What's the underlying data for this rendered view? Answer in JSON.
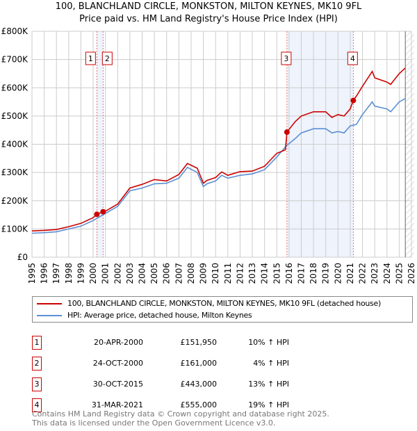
{
  "chart_data": {
    "type": "line",
    "title": "100, BLANCHLAND CIRCLE, MONKSTON, MILTON KEYNES, MK10 9FL",
    "subtitle": "Price paid vs. HM Land Registry's House Price Index (HPI)",
    "xlim": [
      1995,
      2026
    ],
    "ylim": [
      0,
      800000
    ],
    "x_ticks": [
      "1995",
      "1996",
      "1997",
      "1998",
      "1999",
      "2000",
      "2001",
      "2002",
      "2003",
      "2004",
      "2005",
      "2006",
      "2007",
      "2008",
      "2009",
      "2010",
      "2011",
      "2012",
      "2013",
      "2014",
      "2015",
      "2016",
      "2017",
      "2018",
      "2019",
      "2020",
      "2021",
      "2022",
      "2023",
      "2024",
      "2025",
      "2026"
    ],
    "y_ticks": [
      {
        "v": 0,
        "l": "£0"
      },
      {
        "v": 100000,
        "l": "£100K"
      },
      {
        "v": 200000,
        "l": "£200K"
      },
      {
        "v": 300000,
        "l": "£300K"
      },
      {
        "v": 400000,
        "l": "£400K"
      },
      {
        "v": 500000,
        "l": "£500K"
      },
      {
        "v": 600000,
        "l": "£600K"
      },
      {
        "v": 700000,
        "l": "£700K"
      },
      {
        "v": 800000,
        "l": "£800K"
      }
    ],
    "grid": true,
    "shaded_ranges": [
      [
        2000.3,
        2000.81
      ],
      [
        2015.83,
        2021.25
      ]
    ],
    "hatched_from": 2025.5,
    "series": [
      {
        "name": "100, BLANCHLAND CIRCLE, MONKSTON, MILTON KEYNES, MK10 9FL (detached house)",
        "color": "#cc0000",
        "x": [
          1995,
          1996,
          1997,
          1998,
          1999,
          2000,
          2000.3,
          2000.81,
          2001,
          2002,
          2003,
          2004,
          2005,
          2006,
          2007,
          2007.7,
          2008.5,
          2009,
          2009.3,
          2010,
          2010.5,
          2011,
          2012,
          2013,
          2014,
          2015,
          2015.7,
          2015.83,
          2016.5,
          2017,
          2018,
          2019,
          2019.5,
          2020,
          2020.5,
          2021,
          2021.25,
          2021.5,
          2022,
          2022.8,
          2023,
          2024,
          2024.3,
          2025,
          2025.5
        ],
        "y": [
          93000,
          95000,
          98000,
          108000,
          120000,
          140000,
          151950,
          161000,
          163000,
          188000,
          245000,
          258000,
          275000,
          270000,
          293000,
          332000,
          315000,
          262000,
          272000,
          282000,
          302000,
          290000,
          303000,
          305000,
          322000,
          368000,
          380000,
          443000,
          480000,
          500000,
          515000,
          515000,
          495000,
          505000,
          500000,
          525000,
          555000,
          570000,
          605000,
          658000,
          635000,
          620000,
          612000,
          650000,
          670000
        ]
      },
      {
        "name": "HPI: Average price, detached house, Milton Keynes",
        "color": "#5b8fd4",
        "x": [
          1995,
          1996,
          1997,
          1998,
          1999,
          2000,
          2001,
          2002,
          2003,
          2004,
          2005,
          2006,
          2007,
          2007.7,
          2008.5,
          2009,
          2009.3,
          2010,
          2010.5,
          2011,
          2012,
          2013,
          2014,
          2015,
          2015.8,
          2016.5,
          2017,
          2018,
          2019,
          2019.5,
          2020,
          2020.5,
          2021,
          2021.5,
          2022,
          2022.8,
          2023,
          2024,
          2024.3,
          2025,
          2025.5
        ],
        "y": [
          85000,
          87000,
          90000,
          100000,
          110000,
          130000,
          155000,
          180000,
          235000,
          245000,
          260000,
          262000,
          280000,
          318000,
          300000,
          250000,
          260000,
          270000,
          290000,
          280000,
          290000,
          295000,
          310000,
          355000,
          395000,
          420000,
          440000,
          455000,
          455000,
          440000,
          445000,
          440000,
          465000,
          470000,
          505000,
          550000,
          535000,
          525000,
          515000,
          550000,
          562000
        ]
      }
    ],
    "markers": [
      {
        "label": "1",
        "x": 2000.3,
        "y": 151950
      },
      {
        "label": "2",
        "x": 2000.81,
        "y": 161000
      },
      {
        "label": "3",
        "x": 2015.83,
        "y": 443000
      },
      {
        "label": "4",
        "x": 2021.25,
        "y": 555000
      }
    ]
  },
  "legend": [
    {
      "label": "100, BLANCHLAND CIRCLE, MONKSTON, MILTON KEYNES, MK10 9FL (detached house)",
      "color": "#cc0000"
    },
    {
      "label": "HPI: Average price, detached house, Milton Keynes",
      "color": "#5b8fd4"
    }
  ],
  "transactions": [
    {
      "num": "1",
      "date": "20-APR-2000",
      "price": "£151,950",
      "hpi": "10% ↑ HPI"
    },
    {
      "num": "2",
      "date": "24-OCT-2000",
      "price": "£161,000",
      "hpi": "4% ↑ HPI"
    },
    {
      "num": "3",
      "date": "30-OCT-2015",
      "price": "£443,000",
      "hpi": "13% ↑ HPI"
    },
    {
      "num": "4",
      "date": "31-MAR-2021",
      "price": "£555,000",
      "hpi": "19% ↑ HPI"
    }
  ],
  "footer": [
    "Contains HM Land Registry data © Crown copyright and database right 2025.",
    "This data is licensed under the Open Government Licence v3.0."
  ]
}
